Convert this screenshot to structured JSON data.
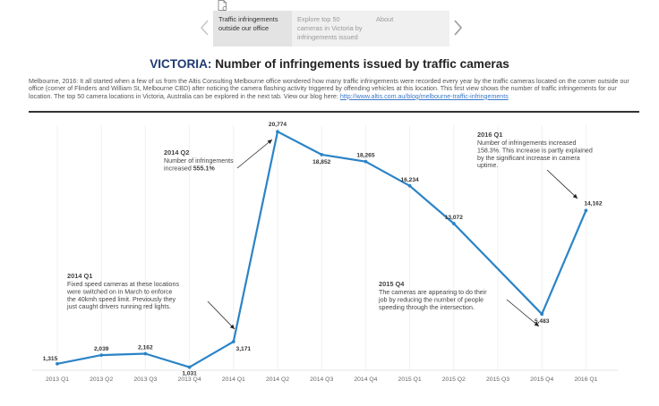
{
  "story": {
    "icon": "document-icon",
    "tabs": [
      {
        "label_lines": [
          "Traffic infringements",
          "outside our office"
        ],
        "active": true
      },
      {
        "label_lines": [
          "Explore top 50",
          "cameras in Victoria by",
          "infringements issued"
        ],
        "active": false
      },
      {
        "label_lines": [
          "About"
        ],
        "active": false
      }
    ]
  },
  "title": {
    "accent": "VICTORIA:",
    "rest": "Number of infringements issued by traffic cameras"
  },
  "intro": {
    "text": "Melbourne, 2016: It all started when a few of us from the Altis Consulting Melbourne office wondered how many traffic infringements were recorded every year by the traffic cameras located on the corner outside our office (corner of Flinders and William St, Melbourne CBD) after noticing the camera flashing activity triggered by offending vehicles at this location. This first view shows the number of traffic infringements for our location. The top 50 camera locations in Victoria, Australia can be explored in the next tab. View our blog here:",
    "link": "http://www.altis.com.au/blog/melbourne-traffic-infringements"
  },
  "colors": {
    "line": "#2b84c6",
    "title_accent": "#1f3b73",
    "link": "#3b78c8"
  },
  "chart_data": {
    "type": "line",
    "categories": [
      "2013 Q1",
      "2013 Q2",
      "2013 Q3",
      "2013 Q4",
      "2014 Q1",
      "2014 Q2",
      "2014 Q3",
      "2014 Q4",
      "2015 Q1",
      "2015 Q2",
      "2015 Q3",
      "2015 Q4",
      "2016 Q1"
    ],
    "series": [
      {
        "values": [
          1315,
          2039,
          2162,
          1031,
          3171,
          20774,
          18852,
          18265,
          16234,
          13072,
          null,
          5483,
          14162
        ]
      }
    ],
    "data_labels": [
      "1,315",
      "2,039",
      "2,162",
      "1,031",
      "3,171",
      "20,774",
      "18,852",
      "18,265",
      "16,234",
      "13,072",
      "",
      "5,483",
      "14,162"
    ],
    "ylim": [
      0,
      21000
    ],
    "grid": true,
    "annotations": [
      {
        "point": "2014 Q2",
        "title": "2014 Q2",
        "lines": [
          "Number of infringements",
          "increased 555.1%"
        ],
        "strong": "555.1%"
      },
      {
        "point": "2014 Q1",
        "title": "2014 Q1",
        "lines": [
          "Fixed speed cameras at these locations",
          "were switched on in March to enforce",
          "the 40kmh speed limit. Previously they",
          "just caught drivers running red lights."
        ]
      },
      {
        "point": "2015 Q4",
        "title": "2015 Q4",
        "lines": [
          "The cameras are appearing to do their",
          "job by reducing the number of people",
          "speeding through the intersection."
        ]
      },
      {
        "point": "2016 Q1",
        "title": "2016 Q1",
        "lines": [
          "Number of infringements increased",
          "158.3%.  This increase is partly explained",
          "by the significant increase in camera",
          "uptime."
        ]
      }
    ]
  }
}
